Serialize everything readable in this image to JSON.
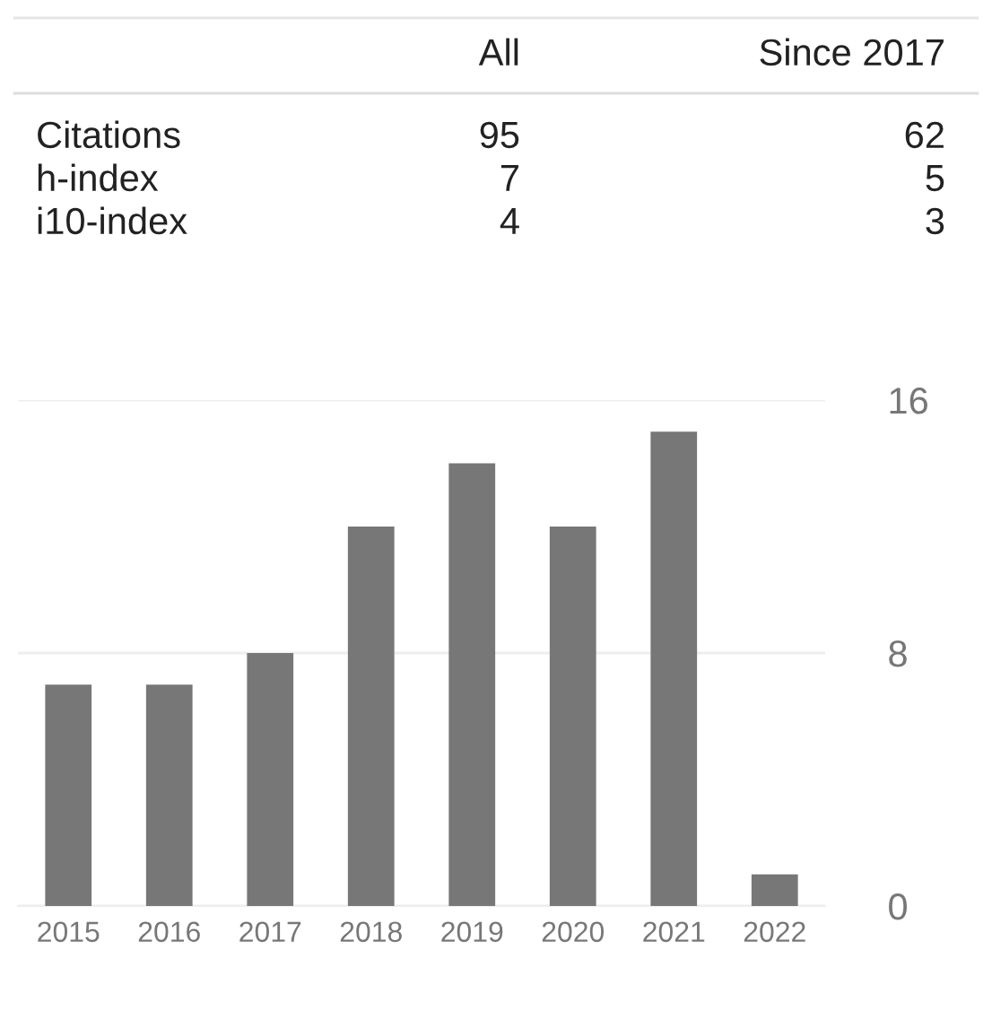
{
  "chart_data": [
    {
      "type": "other",
      "categories": [
        "All",
        "Since 2017"
      ],
      "y_categories": [
        "Citations",
        "h-index",
        "i10-index"
      ],
      "cell_labels": [
        [
          "95",
          "62"
        ],
        [
          "7",
          "5"
        ],
        [
          "4",
          "3"
        ]
      ]
    },
    {
      "type": "bar",
      "categories": [
        "2015",
        "2016",
        "2017",
        "2018",
        "2019",
        "2020",
        "2021",
        "2022"
      ],
      "values": [
        7,
        7,
        8,
        12,
        14,
        12,
        15,
        1
      ],
      "color": "#777777",
      "ylim": [
        0,
        16
      ],
      "yticks": [
        0,
        8,
        16
      ],
      "grid": "y"
    }
  ]
}
